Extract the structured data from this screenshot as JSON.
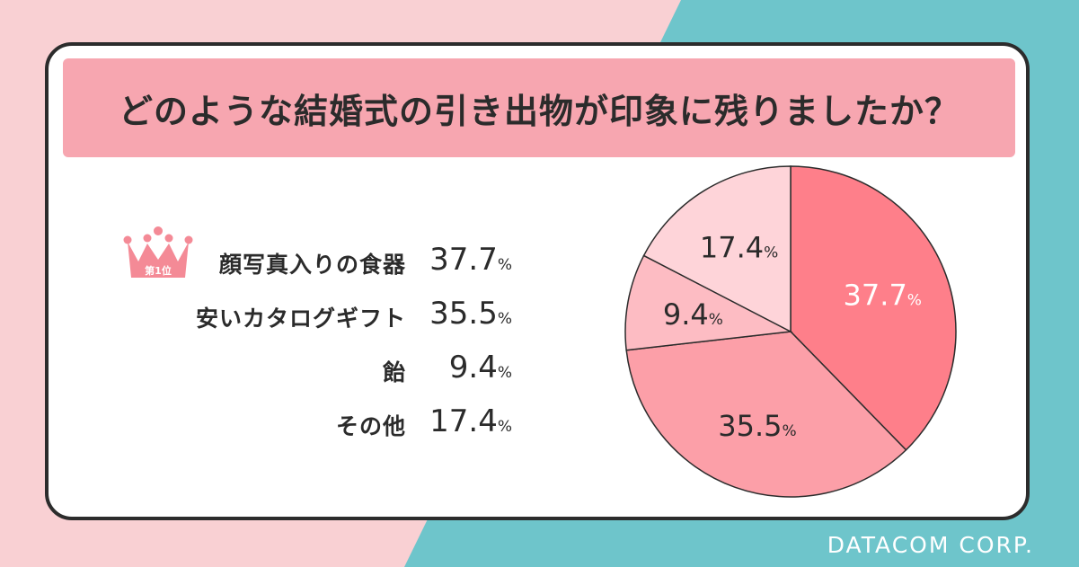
{
  "title": "どのような結婚式の引き出物が印象に残りましたか？",
  "rank_badge": "第1位",
  "footer": "DATACOM CORP.",
  "colors": {
    "background_pink": "#f9d0d3",
    "background_teal": "#6ec5cb",
    "title_band": "#f7a6b0",
    "card_border": "#2c2c2c",
    "crown": "#f48a96"
  },
  "chart_data": {
    "type": "pie",
    "title": "どのような結婚式の引き出物が印象に残りましたか？",
    "unit": "%",
    "categories": [
      "顔写真入りの食器",
      "安いカタログギフト",
      "飴",
      "その他"
    ],
    "values": [
      37.7,
      35.5,
      9.4,
      17.4
    ],
    "labels": [
      "37.7",
      "35.5",
      "9.4",
      "17.4"
    ],
    "colors": [
      "#fe7f8a",
      "#fc9fa8",
      "#fdbcc3",
      "#fed4d9"
    ],
    "start_angle_deg": 0,
    "direction": "clockwise",
    "legend": "left"
  }
}
